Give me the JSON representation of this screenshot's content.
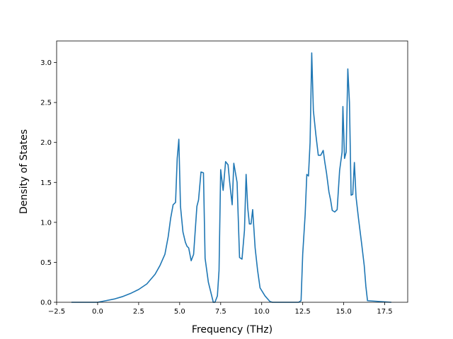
{
  "chart_data": {
    "type": "line",
    "title": "",
    "xlabel": "Frequency (THz)",
    "ylabel": "Density of States",
    "xlim": [
      -2.5,
      18.9
    ],
    "ylim": [
      0,
      3.27
    ],
    "grid": false,
    "legend": "none",
    "xticks": [
      -2.5,
      0.0,
      2.5,
      5.0,
      7.5,
      10.0,
      12.5,
      15.0,
      17.5
    ],
    "xtick_labels": [
      "−2.5",
      "0.0",
      "2.5",
      "5.0",
      "7.5",
      "10.0",
      "12.5",
      "15.0",
      "17.5"
    ],
    "yticks": [
      0.0,
      0.5,
      1.0,
      1.5,
      2.0,
      2.5,
      3.0
    ],
    "ytick_labels": [
      "0.0",
      "0.5",
      "1.0",
      "1.5",
      "2.0",
      "2.5",
      "3.0"
    ],
    "series": [
      {
        "color": "#1f77b4",
        "x": [
          -1.6,
          0.0,
          0.5,
          1.0,
          1.5,
          2.0,
          2.5,
          3.0,
          3.5,
          3.8,
          4.1,
          4.3,
          4.45,
          4.6,
          4.75,
          4.85,
          4.95,
          5.05,
          5.2,
          5.35,
          5.45,
          5.55,
          5.7,
          5.85,
          5.95,
          6.05,
          6.15,
          6.3,
          6.45,
          6.55,
          6.75,
          7.05,
          7.15,
          7.3,
          7.4,
          7.5,
          7.65,
          7.8,
          7.95,
          8.05,
          8.2,
          8.3,
          8.5,
          8.65,
          8.8,
          8.95,
          9.05,
          9.15,
          9.25,
          9.35,
          9.45,
          9.6,
          9.75,
          9.9,
          10.2,
          10.5,
          10.65,
          12.25,
          12.4,
          12.5,
          12.65,
          12.75,
          12.85,
          12.95,
          13.05,
          13.15,
          13.3,
          13.45,
          13.6,
          13.75,
          13.85,
          13.95,
          14.1,
          14.2,
          14.3,
          14.45,
          14.6,
          14.75,
          14.9,
          14.95,
          15.05,
          15.15,
          15.25,
          15.35,
          15.45,
          15.55,
          15.65,
          15.75,
          15.9,
          16.1,
          16.25,
          16.35,
          16.45,
          17.9
        ],
        "y": [
          0.0,
          0.0,
          0.02,
          0.04,
          0.07,
          0.11,
          0.16,
          0.23,
          0.35,
          0.46,
          0.6,
          0.82,
          1.05,
          1.22,
          1.25,
          1.8,
          2.04,
          1.2,
          0.88,
          0.75,
          0.7,
          0.68,
          0.52,
          0.6,
          0.9,
          1.2,
          1.28,
          1.63,
          1.62,
          0.55,
          0.25,
          0.0,
          0.0,
          0.08,
          0.4,
          1.66,
          1.4,
          1.76,
          1.72,
          1.5,
          1.22,
          1.74,
          1.5,
          0.56,
          0.54,
          0.9,
          1.6,
          1.18,
          0.98,
          0.98,
          1.16,
          0.68,
          0.4,
          0.18,
          0.08,
          0.01,
          0.0,
          0.0,
          0.02,
          0.6,
          1.1,
          1.6,
          1.58,
          2.0,
          3.12,
          2.4,
          2.1,
          1.84,
          1.84,
          1.9,
          1.75,
          1.62,
          1.38,
          1.28,
          1.15,
          1.13,
          1.16,
          1.65,
          1.88,
          2.45,
          1.8,
          1.88,
          2.92,
          2.5,
          1.34,
          1.35,
          1.75,
          1.32,
          1.05,
          0.72,
          0.46,
          0.2,
          0.02,
          0.0
        ]
      }
    ]
  }
}
